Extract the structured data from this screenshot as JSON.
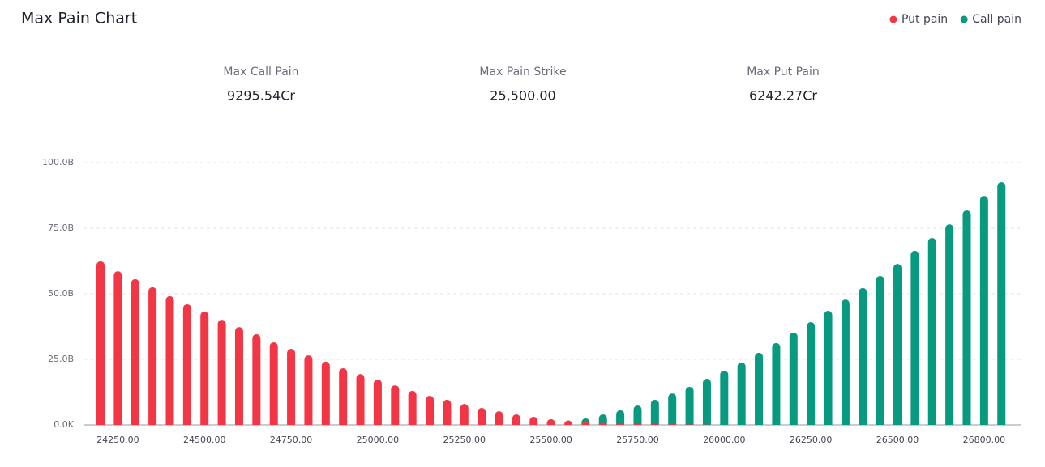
{
  "title": "Max Pain Chart",
  "stats": [
    {
      "label": "Max Call Pain",
      "value": "9295.54Cr"
    },
    {
      "label": "Max Pain Strike",
      "value": "25,500.00"
    },
    {
      "label": "Max Put Pain",
      "value": "6242.27Cr"
    }
  ],
  "chart_data": {
    "type": "bar",
    "legend": "top-right",
    "grid": true,
    "categories": [
      null,
      "24250.00",
      null,
      null,
      null,
      null,
      "24500.00",
      null,
      null,
      null,
      null,
      "24750.00",
      null,
      null,
      null,
      null,
      "25000.00",
      null,
      null,
      null,
      null,
      "25250.00",
      null,
      null,
      null,
      null,
      "25500.00",
      null,
      null,
      null,
      null,
      "25750.00",
      null,
      null,
      null,
      null,
      "26000.00",
      null,
      null,
      null,
      null,
      "26250.00",
      null,
      null,
      null,
      null,
      "26500.00",
      null,
      null,
      null,
      null,
      "26800.00",
      null
    ],
    "series": [
      {
        "name": "Put pain",
        "color": "#f23645",
        "values": [
          62.4,
          58.6,
          55.6,
          52.5,
          49.1,
          46.0,
          43.2,
          40.1,
          37.3,
          34.6,
          31.5,
          29.0,
          26.5,
          24.1,
          21.6,
          19.4,
          17.3,
          15.1,
          13.0,
          11.1,
          9.6,
          8.0,
          6.5,
          5.2,
          4.0,
          3.1,
          2.2,
          1.7,
          1.1,
          0.8,
          0.6,
          0.5,
          0.4,
          0.3,
          0.2,
          0.1,
          0,
          0,
          0,
          0,
          0,
          0,
          0,
          0,
          0,
          0,
          0,
          0,
          0,
          0,
          0,
          0,
          0
        ]
      },
      {
        "name": "Call pain",
        "color": "#089981",
        "values": [
          0,
          0,
          0,
          0,
          0,
          0,
          0,
          0,
          0,
          0,
          0,
          0,
          0,
          0,
          0,
          0,
          0,
          0,
          0,
          0,
          0,
          0,
          0,
          0,
          0,
          0,
          0.5,
          1.3,
          2.5,
          4.0,
          5.6,
          7.4,
          9.6,
          12.0,
          14.5,
          17.6,
          20.7,
          23.8,
          27.5,
          31.2,
          35.2,
          39.2,
          43.5,
          47.8,
          52.2,
          56.8,
          61.4,
          66.4,
          71.3,
          76.5,
          81.8,
          87.3,
          92.6
        ]
      }
    ],
    "ylim": [
      0,
      100
    ],
    "yticks": [
      {
        "value": 0,
        "label": "0.0K"
      },
      {
        "value": 25,
        "label": "25.0B"
      },
      {
        "value": 50,
        "label": "50.0B"
      },
      {
        "value": 75,
        "label": "75.0B"
      },
      {
        "value": 100,
        "label": "100.0B"
      }
    ]
  }
}
